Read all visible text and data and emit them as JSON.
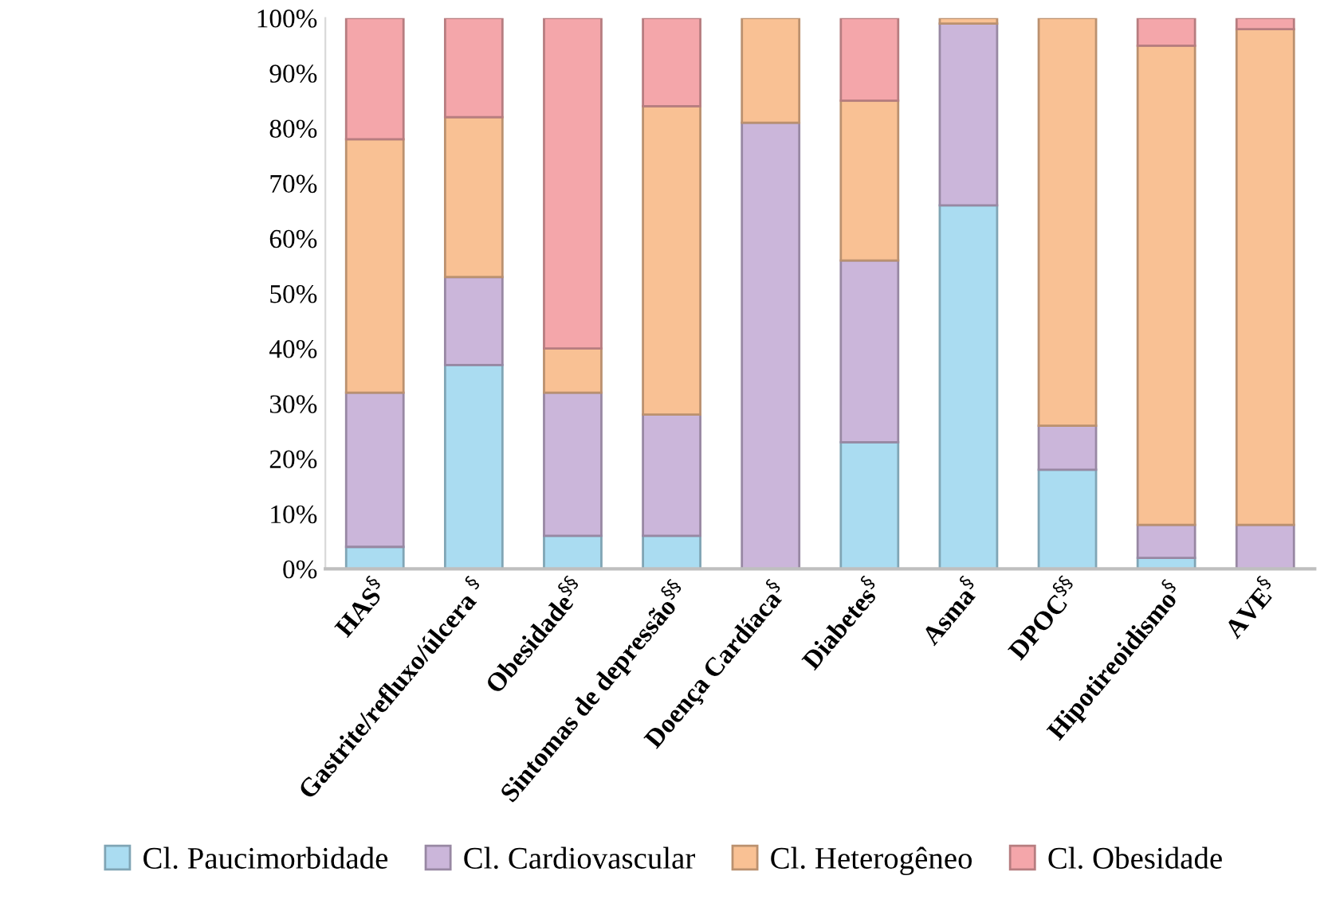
{
  "chart_data": {
    "type": "bar",
    "stacked": true,
    "categories": [
      "HAS$^{§}$",
      "Gastrite/refluxo/úlcera $^{§}$",
      "Obesidade$^{§§}$",
      "Sintomas de depressão$^{§§}$",
      "Doença Cardíaca$^{§}$",
      "Diabetes$^{§}$",
      "Asma$^{§}$",
      "DPOC$^{§§}$",
      "Hipotireoidismo$^{§}$",
      "AVE$^{§}$"
    ],
    "series": [
      {
        "name": "Cl. Paucimorbidade",
        "color": "#aadcf1",
        "values": [
          4,
          37,
          6,
          6,
          null,
          23,
          66,
          18,
          2,
          null
        ]
      },
      {
        "name": "Cl. Cardiovascular",
        "color": "#cbb6da",
        "values": [
          28,
          16,
          26,
          22,
          81,
          33,
          33,
          8,
          6,
          8
        ]
      },
      {
        "name": "Cl. Heterogêneo",
        "color": "#f9c194",
        "values": [
          46,
          29,
          8,
          56,
          19,
          29,
          1,
          74,
          87,
          90
        ]
      },
      {
        "name": "Cl. Obesidade",
        "color": "#f4a6aa",
        "values": [
          22,
          18,
          60,
          16,
          null,
          15,
          null,
          null,
          5,
          2
        ]
      }
    ],
    "ylim": [
      0,
      100
    ],
    "yticks": [
      {
        "value": 0,
        "label": "0%"
      },
      {
        "value": 10,
        "label": "10%"
      },
      {
        "value": 20,
        "label": "20%"
      },
      {
        "value": 30,
        "label": "30%"
      },
      {
        "value": 40,
        "label": "40%"
      },
      {
        "value": 50,
        "label": "50%"
      },
      {
        "value": 60,
        "label": "60%"
      },
      {
        "value": 70,
        "label": "70%"
      },
      {
        "value": 80,
        "label": "80%"
      },
      {
        "value": 90,
        "label": "90%"
      },
      {
        "value": 100,
        "label": "100%"
      }
    ],
    "legend": "bottom",
    "grid": false
  }
}
